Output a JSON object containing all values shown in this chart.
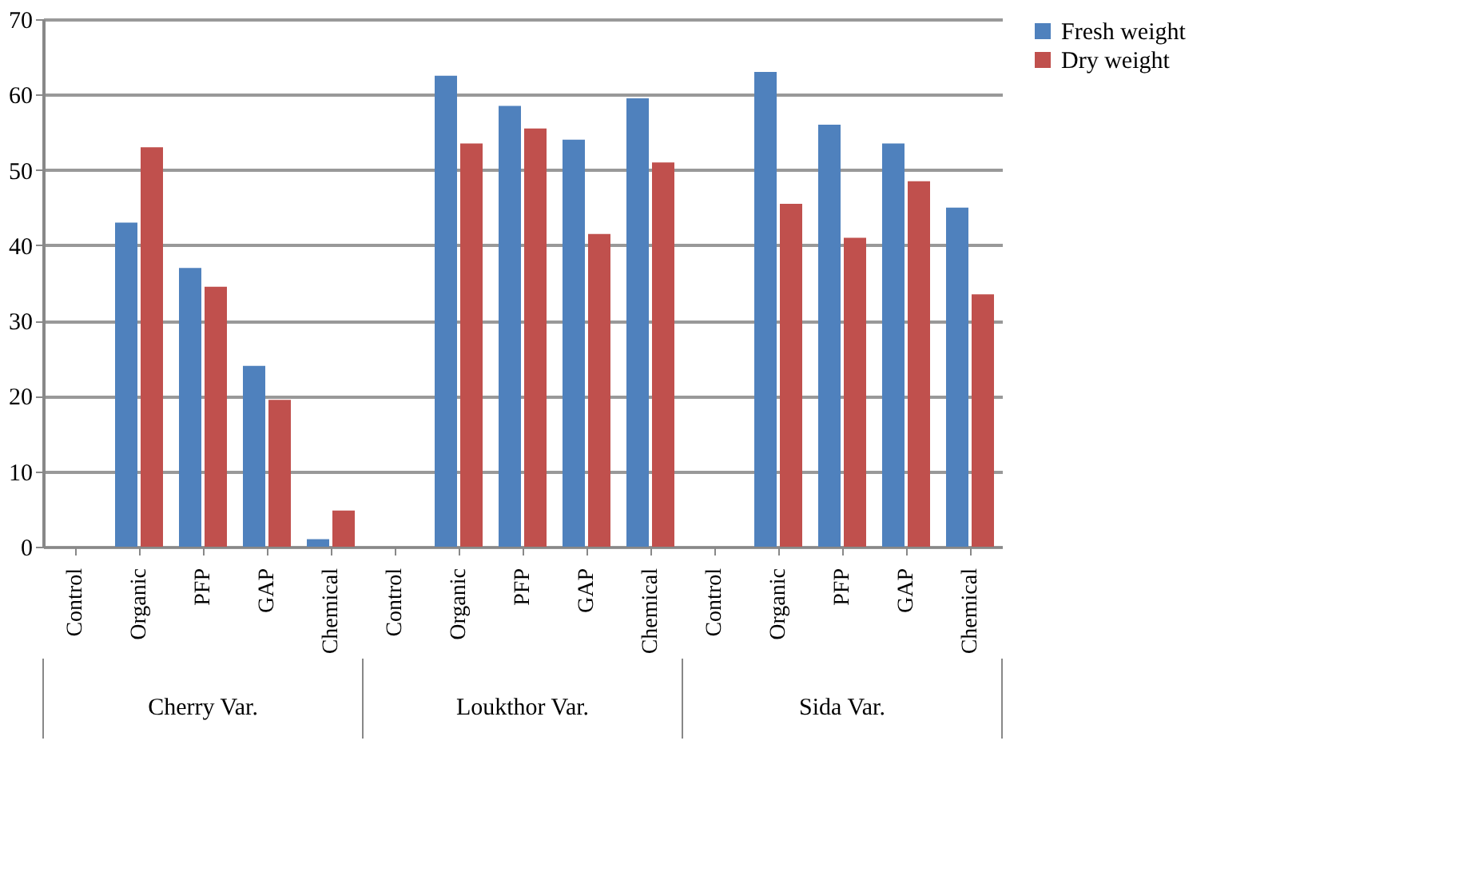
{
  "chart_data": {
    "type": "bar",
    "categories": [
      "Control",
      "Organic",
      "PFP",
      "GAP",
      "Chemical",
      "Control",
      "Organic",
      "PFP",
      "GAP",
      "Chemical",
      "Control",
      "Organic",
      "PFP",
      "GAP",
      "Chemical"
    ],
    "series": [
      {
        "name": "Fresh weight",
        "color": "#4f81bd",
        "values": [
          0,
          43,
          37,
          24,
          1,
          0,
          62.5,
          58.5,
          54,
          59.5,
          0,
          63,
          56,
          53.5,
          45
        ]
      },
      {
        "name": "Dry weight",
        "color": "#c0504d",
        "values": [
          0,
          53,
          34.5,
          19.5,
          4.8,
          0,
          53.5,
          55.5,
          41.5,
          51,
          0,
          45.5,
          41,
          48.5,
          33.5
        ]
      }
    ],
    "annotations": [
      "Cherry Var.",
      "Loukthor Var.",
      "Sida Var."
    ],
    "ylim": [
      0,
      70
    ],
    "yticks": [
      0,
      10,
      20,
      30,
      40,
      50,
      60,
      70
    ],
    "grid": "y",
    "legend": "right"
  }
}
